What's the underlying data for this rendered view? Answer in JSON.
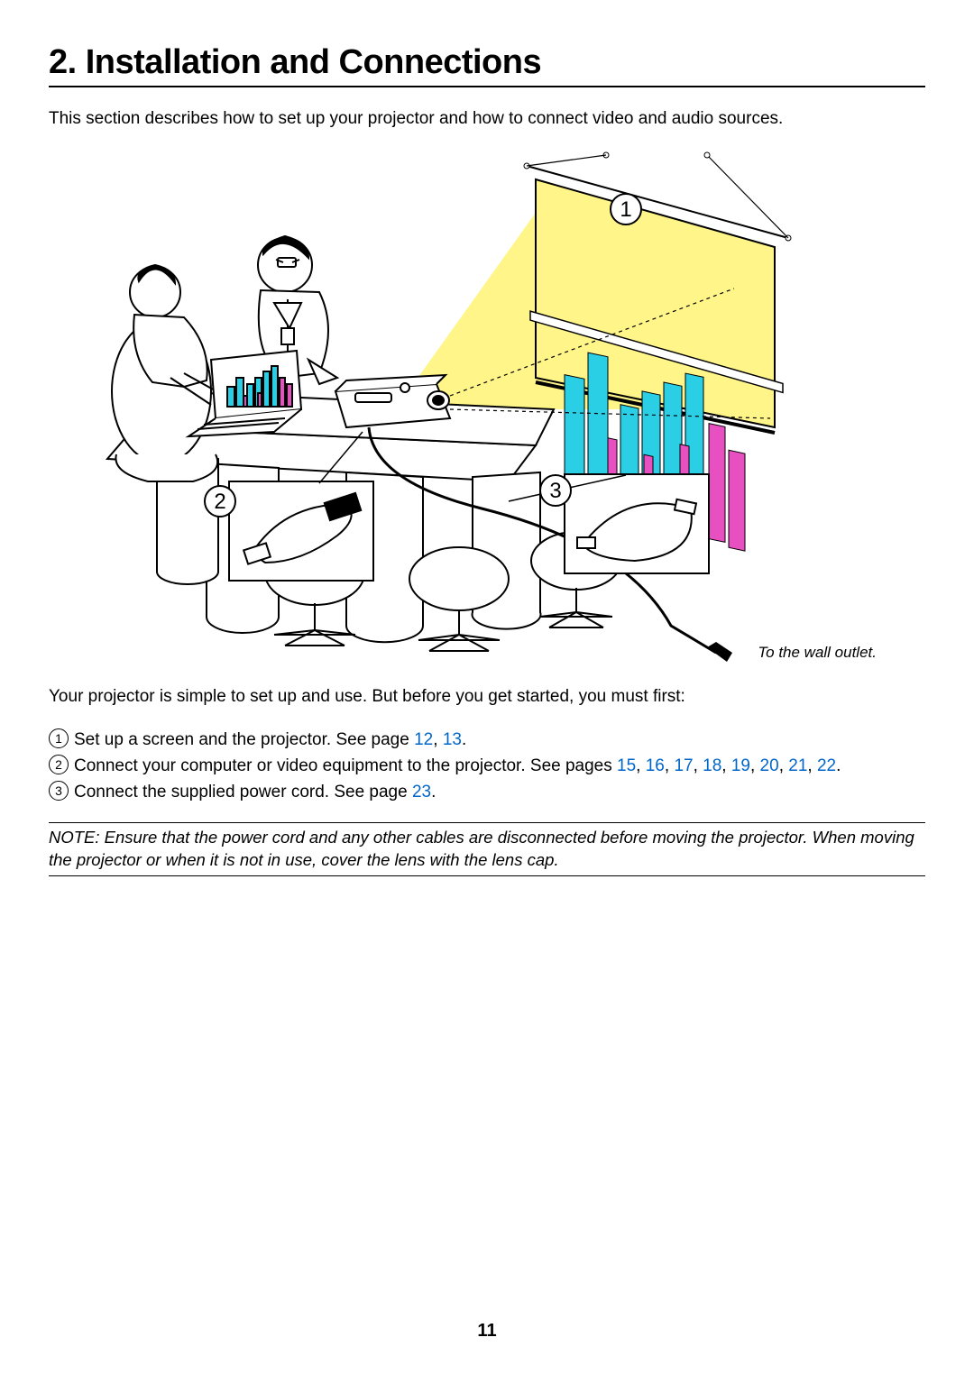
{
  "heading": "2. Installation and Connections",
  "intro": "This section describes how to set up your projector and how to connect video and audio sources.",
  "figure": {
    "caption": "To the wall outlet.",
    "callouts": [
      "1",
      "2",
      "3"
    ],
    "screen_bg": "#fff588",
    "beam_fill": "#fff588",
    "bar_cyan": "#2acfe6",
    "bar_magenta": "#e84fc0",
    "line_color": "#000000",
    "bg": "#ffffff"
  },
  "lead": "Your projector is simple to set up and use. But before you get started, you must first:",
  "steps": [
    {
      "num": "1",
      "text_before": "Set up a screen and the projector. See page ",
      "links": [
        "12",
        "13"
      ],
      "text_after": "."
    },
    {
      "num": "2",
      "text_before": "Connect your computer or video equipment to the projector. See pages ",
      "links": [
        "15",
        "16",
        "17",
        "18",
        "19",
        "20",
        "21",
        "22"
      ],
      "text_after": "."
    },
    {
      "num": "3",
      "text_before": "Connect the supplied power cord. See page ",
      "links": [
        "23"
      ],
      "text_after": "."
    }
  ],
  "note": "NOTE: Ensure that the power cord and any other cables are disconnected before moving the projector. When moving the projector or when it is not in use, cover the lens with the lens cap.",
  "page_number": "11",
  "link_color": "#0066cc"
}
